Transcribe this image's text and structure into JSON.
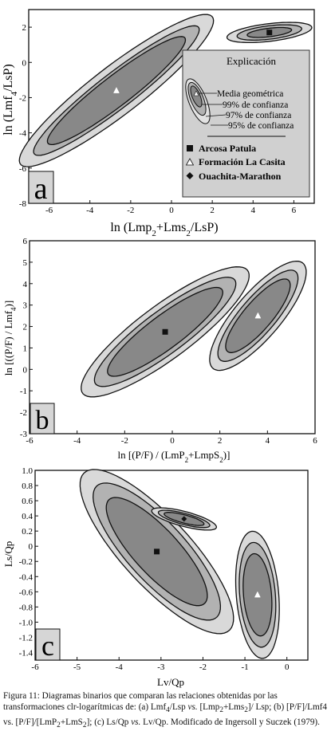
{
  "panels": [
    {
      "id": "a",
      "letter": "a",
      "xlabel_main": "ln (Lmp",
      "xlabel_sub1": "2",
      "xlabel_mid": "+Lms",
      "xlabel_sub2": "2",
      "xlabel_end": "/LsP)",
      "ylabel_main": "ln (Lmf",
      "ylabel_sub": "4",
      "ylabel_end": "/LsP)",
      "xticks": [
        "-6",
        "-4",
        "-2",
        "0",
        "2",
        "4",
        "6"
      ],
      "yticks": [
        "2",
        "0",
        "-2",
        "-4",
        "-6",
        "-8"
      ]
    },
    {
      "id": "b",
      "letter": "b",
      "xlabel_main": "ln [(P/F) / (LmP",
      "xlabel_sub1": "2",
      "xlabel_mid": "+LmpS",
      "xlabel_sub2": "2",
      "xlabel_end": ")]",
      "ylabel_main": "ln [((P/F) / Lmf",
      "ylabel_sub": "4",
      "ylabel_end": ")]",
      "xticks": [
        "-6",
        "-4",
        "-2",
        "0",
        "2",
        "4",
        "6"
      ],
      "yticks": [
        "6",
        "5",
        "4",
        "3",
        "2",
        "1",
        "0",
        "-1",
        "-2",
        "-3"
      ]
    },
    {
      "id": "c",
      "letter": "c",
      "xlabel": "Lv/Qp",
      "ylabel": "Ls/Qp",
      "xticks": [
        "-6",
        "-5",
        "-4",
        "-3",
        "-2",
        "-1",
        "0"
      ],
      "yticks": [
        "1.0",
        "0.8",
        "0.6",
        "0.4",
        "0.2",
        "0",
        "-0.2",
        "-0.4",
        "-0.6",
        "-0.8",
        "-1.0",
        "-1.2",
        "-1.4"
      ]
    }
  ],
  "legend": {
    "title": "Explicación",
    "geo_mean": "Media geométrica",
    "c99": "99% de confianza",
    "c97": "97% de confianza",
    "c95": "95% de confianza",
    "items": [
      {
        "marker": "square",
        "label": "Arcosa Patula"
      },
      {
        "marker": "triangle",
        "label": "Formación La Casita"
      },
      {
        "marker": "diamond",
        "label": "Ouachita-Marathon"
      }
    ]
  },
  "caption": {
    "p1": "Figura 11: Diagramas binarios que comparan las relaciones obtenidas por las transformaciones clr-logarítmicas de: (a) Lmf",
    "s1": "4",
    "p2": "/Lsp ",
    "vs1": "vs.",
    "p3": " [Lmp",
    "s2": "2",
    "p4": "+Lms",
    "s3": "2",
    "p5": "]/ Lsp; (b) [P/F]/Lmf4 vs. [P/F]/[LmP",
    "s4": "2",
    "p6": "+LmS",
    "s5": "2",
    "p7": "]; (c) Ls/Qp ",
    "vs2": "vs.",
    "p8": " Lv/Qp. Modificado de Ingersoll y Suczek (1979)."
  },
  "colors": {
    "fill95": "#d9d9d9",
    "fill97": "#b2b2b2",
    "fill99": "#888888",
    "legend_bg": "#d0d0d0",
    "letter_bg": "#d6d6d6"
  },
  "chart_data": [
    {
      "type": "scatter",
      "panel": "a",
      "xlim": [
        -7,
        7
      ],
      "ylim": [
        -8,
        3
      ],
      "series": [
        {
          "name": "Arcosa Patula",
          "marker": "square",
          "mean": [
            4.8,
            1.7
          ],
          "ellipses": [
            {
              "level": "95%",
              "semi_axes": [
                2.1,
                0.5
              ],
              "angle_deg": 8
            },
            {
              "level": "97%",
              "semi_axes": [
                1.6,
                0.38
              ],
              "angle_deg": 8
            },
            {
              "level": "99%",
              "semi_axes": [
                1.1,
                0.24
              ],
              "angle_deg": 8
            }
          ]
        },
        {
          "name": "Formación La Casita",
          "marker": "triangle",
          "mean": [
            -2.7,
            -1.6
          ],
          "ellipses": [
            {
              "level": "95%",
              "semi_axes": [
                6.3,
                1.3
              ],
              "angle_deg": 42
            },
            {
              "level": "97%",
              "semi_axes": [
                5.4,
                0.95
              ],
              "angle_deg": 42
            },
            {
              "level": "99%",
              "semi_axes": [
                4.5,
                0.8
              ],
              "angle_deg": 42
            }
          ]
        }
      ]
    },
    {
      "type": "scatter",
      "panel": "b",
      "xlim": [
        -6,
        6
      ],
      "ylim": [
        -3,
        6
      ],
      "series": [
        {
          "name": "Arcosa Patula",
          "marker": "square",
          "mean": [
            -0.3,
            1.75
          ],
          "ellipses": [
            {
              "level": "95%",
              "semi_axes": [
                4.5,
                1.2
              ],
              "angle_deg": 40
            },
            {
              "level": "97%",
              "semi_axes": [
                3.8,
                0.95
              ],
              "angle_deg": 40
            },
            {
              "level": "99%",
              "semi_axes": [
                3.1,
                0.75
              ],
              "angle_deg": 40
            }
          ]
        },
        {
          "name": "Formación La Casita",
          "marker": "triangle",
          "mean": [
            3.6,
            2.5
          ],
          "ellipses": [
            {
              "level": "95%",
              "semi_axes": [
                3.1,
                1.0
              ],
              "angle_deg": 53
            },
            {
              "level": "97%",
              "semi_axes": [
                2.6,
                0.78
              ],
              "angle_deg": 53
            },
            {
              "level": "99%",
              "semi_axes": [
                2.1,
                0.62
              ],
              "angle_deg": 53
            }
          ]
        }
      ]
    },
    {
      "type": "scatter",
      "panel": "c",
      "xlim": [
        -6,
        0.5
      ],
      "ylim": [
        -1.5,
        1.0
      ],
      "series": [
        {
          "name": "Arcosa Patula",
          "marker": "square",
          "mean": [
            -3.1,
            -0.07
          ],
          "ellipses": [
            {
              "level": "95%",
              "semi_axes": [
                2.05,
                0.56
              ],
              "angle_deg": -28
            },
            {
              "level": "97%",
              "semi_axes": [
                1.7,
                0.48
              ],
              "angle_deg": -28
            },
            {
              "level": "99%",
              "semi_axes": [
                1.35,
                0.37
              ],
              "angle_deg": -28
            }
          ]
        },
        {
          "name": "Ouachita-Marathon",
          "marker": "diamond",
          "mean": [
            -2.45,
            0.36
          ],
          "ellipses": [
            {
              "level": "95%",
              "semi_axes": [
                0.78,
                0.1
              ],
              "angle_deg": -8
            },
            {
              "level": "97%",
              "semi_axes": [
                0.62,
                0.075
              ],
              "angle_deg": -8
            },
            {
              "level": "99%",
              "semi_axes": [
                0.48,
                0.055
              ],
              "angle_deg": -8
            }
          ]
        },
        {
          "name": "Formación La Casita",
          "marker": "triangle",
          "mean": [
            -0.7,
            -0.64
          ],
          "ellipses": [
            {
              "level": "95%",
              "semi_axes": [
                0.85,
                0.5
              ],
              "angle_deg": -78
            },
            {
              "level": "97%",
              "semi_axes": [
                0.7,
                0.42
              ],
              "angle_deg": -78
            },
            {
              "level": "99%",
              "semi_axes": [
                0.55,
                0.33
              ],
              "angle_deg": -78
            }
          ]
        }
      ]
    }
  ]
}
